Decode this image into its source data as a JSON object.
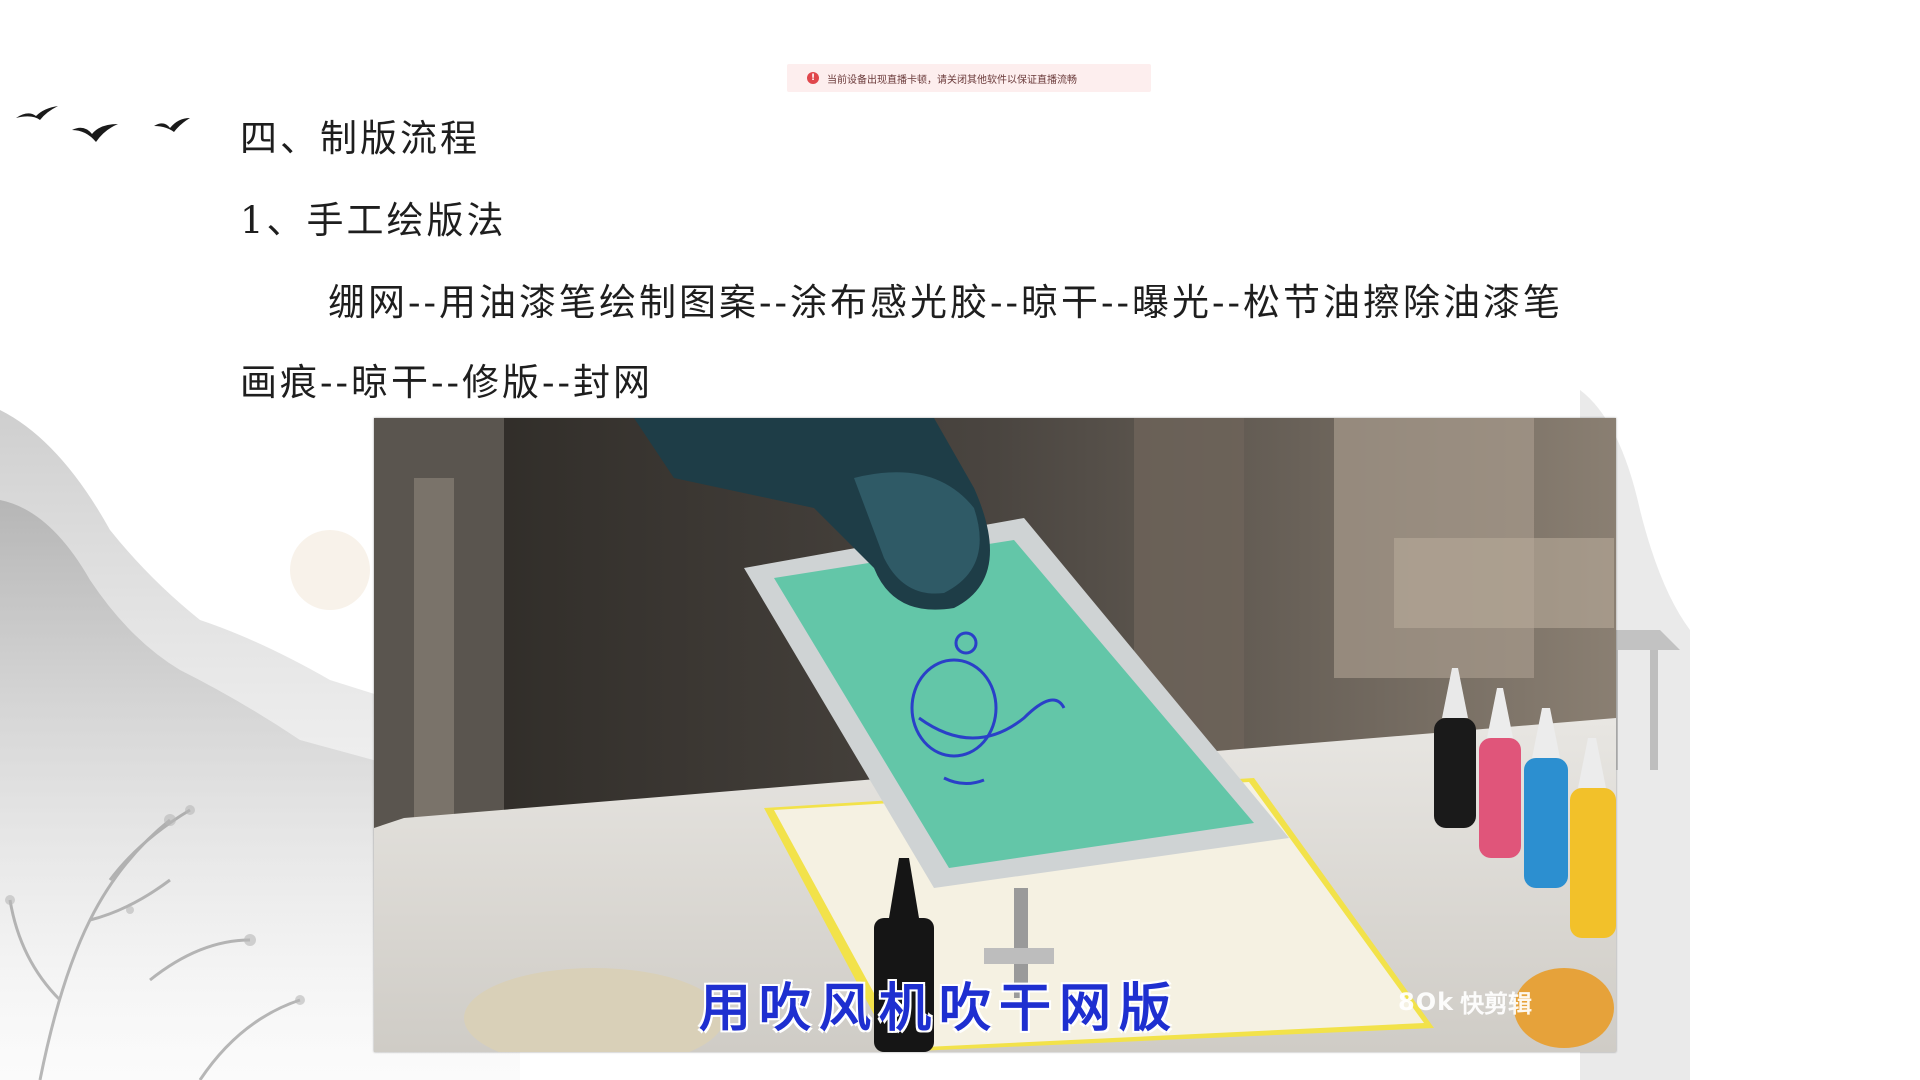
{
  "notification": {
    "message": "当前设备出现直播卡顿，请关闭其他软件以保证直播流畅",
    "icon": "warning-icon",
    "color": "#e0474c"
  },
  "slide": {
    "heading": "四、制版流程",
    "subheading": "1、手工绘版法",
    "body_line1": "绷网--用油漆笔绘制图案--涂布感光胶--晾干--曝光--松节油擦除油漆笔",
    "body_line2": "画痕--晾干--修版--封网"
  },
  "video": {
    "caption": "用吹风机吹干网版",
    "watermark_logo": "8Ok",
    "watermark_text": "快剪辑",
    "caption_color": "#1e2fd0"
  }
}
